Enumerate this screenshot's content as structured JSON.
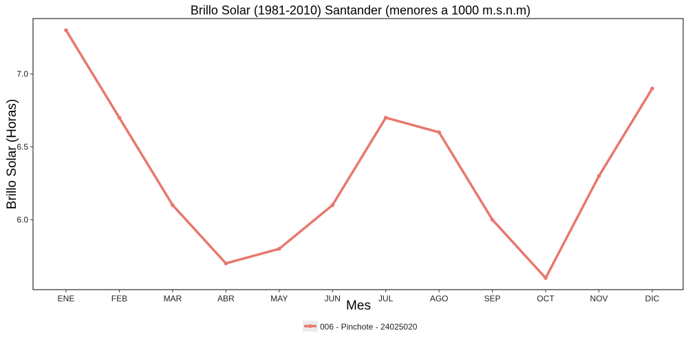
{
  "chart_data": {
    "type": "line",
    "title": "Brillo Solar (1981-2010) Santander (menores a 1000 m.s.n.m)",
    "xlabel": "Mes",
    "ylabel": "Brillo Solar (Horas)",
    "categories": [
      "ENE",
      "FEB",
      "MAR",
      "ABR",
      "MAY",
      "JUN",
      "JUL",
      "AGO",
      "SEP",
      "OCT",
      "NOV",
      "DIC"
    ],
    "series": [
      {
        "name": "006 - Pinchote - 24025020",
        "color": "#e8776d",
        "values": [
          7.3,
          6.7,
          6.1,
          5.7,
          5.8,
          6.1,
          6.7,
          6.6,
          6.0,
          5.6,
          6.3,
          6.9
        ]
      }
    ],
    "ylim": [
      5.52,
      7.38
    ],
    "yticks": [
      6.0,
      6.5,
      7.0
    ],
    "ytick_labels": [
      "6.0",
      "6.5",
      "7.0"
    ],
    "grid": false,
    "legend_position": "bottom"
  }
}
